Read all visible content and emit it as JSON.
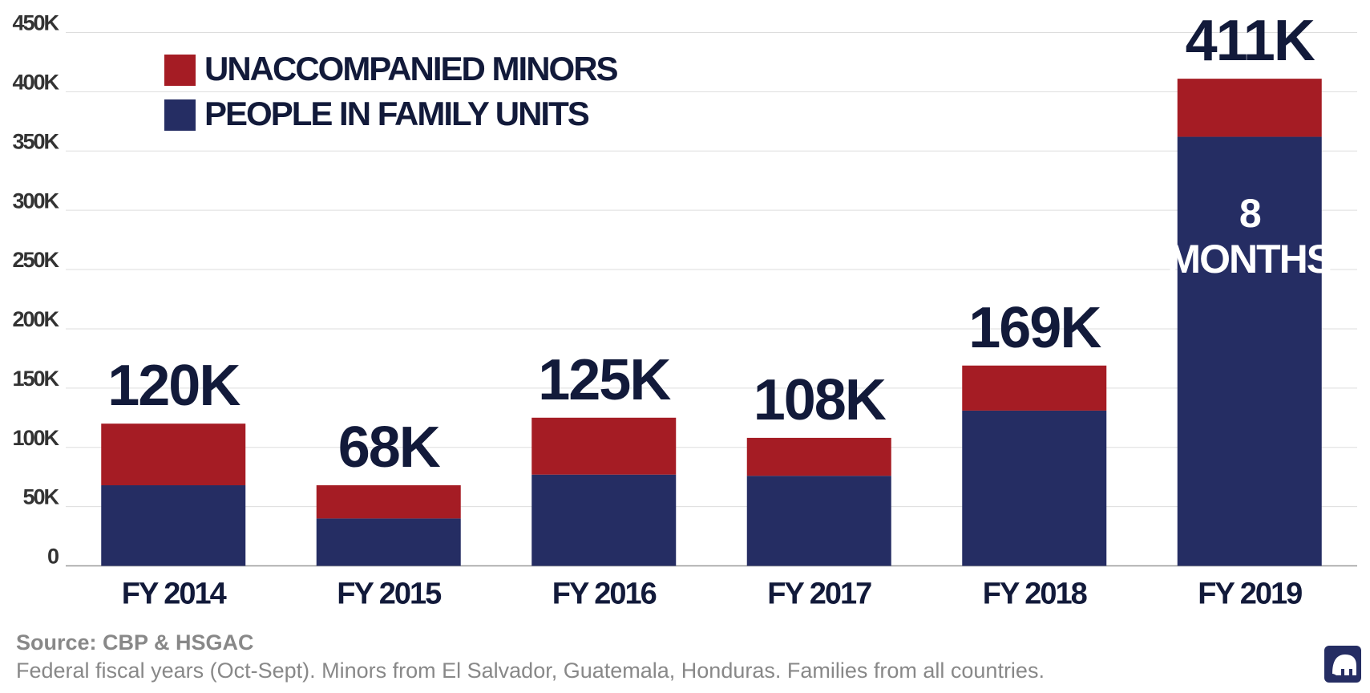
{
  "chart_data": {
    "type": "stacked_bar",
    "categories": [
      "FY 2014",
      "FY 2015",
      "FY 2016",
      "FY 2017",
      "FY 2018",
      "FY 2019"
    ],
    "series": [
      {
        "name": "PEOPLE IN FAMILY UNITS",
        "color": "#252d63",
        "values": [
          68000,
          40000,
          77000,
          76000,
          131000,
          362000
        ]
      },
      {
        "name": "UNACCOMPANIED MINORS",
        "color": "#a51c24",
        "values": [
          52000,
          28000,
          48000,
          32000,
          38000,
          49000
        ]
      }
    ],
    "total_labels": [
      "120K",
      "68K",
      "125K",
      "108K",
      "169K",
      "411K"
    ],
    "annotation": [
      "8",
      "MONTHS"
    ],
    "ylim": [
      0,
      450000
    ],
    "yticks": [
      0,
      {
        "value": 50000,
        "label": "50K"
      },
      {
        "value": 100000,
        "label": "100K"
      },
      {
        "value": 150000,
        "label": "150K"
      },
      {
        "value": 200000,
        "label": "200K"
      },
      {
        "value": 250000,
        "label": "250K"
      },
      {
        "value": 300000,
        "label": "300K"
      },
      {
        "value": 350000,
        "label": "350K"
      },
      {
        "value": 400000,
        "label": "400K"
      },
      {
        "value": 450000,
        "label": "450K"
      }
    ],
    "grid": true,
    "source": "Source: CBP & HSGAC",
    "note": "Federal fiscal years (Oct-Sept). Minors from El Salvador, Guatemala, Honduras. Families from all countries."
  }
}
